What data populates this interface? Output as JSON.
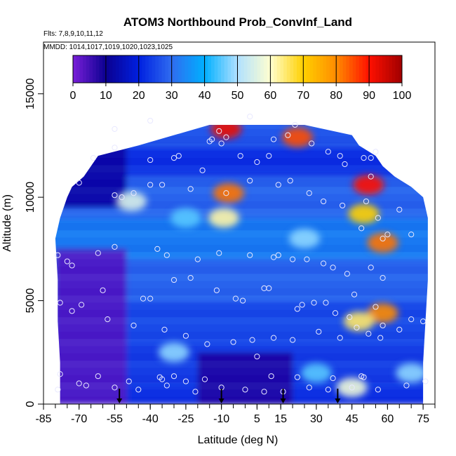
{
  "chart_data": {
    "type": "heatmap",
    "title": "ATOM3 Northbound Prob_ConvInf_Land",
    "annotations": [
      "Flts: 7,8,9,10,11,12",
      "MMDD: 1014,1017,1019,1020,1023,1025"
    ],
    "xlabel": "Latitude (deg N)",
    "ylabel": "Altitude (m)",
    "xlim": [
      -85,
      80
    ],
    "ylim": [
      0,
      17500
    ],
    "x_ticks": [
      -85,
      -70,
      -55,
      -40,
      -25,
      -10,
      5,
      15,
      30,
      45,
      60,
      75
    ],
    "y_ticks": [
      0,
      5000,
      10000,
      15000
    ],
    "colorbar": {
      "range": [
        0,
        100
      ],
      "ticks": [
        0,
        10,
        20,
        30,
        40,
        50,
        60,
        70,
        80,
        90,
        100
      ],
      "colors": [
        "#7a1fd9",
        "#0a0090",
        "#0020e0",
        "#2f6cf0",
        "#00b0ff",
        "#b0e0ff",
        "#ffffd0",
        "#ffd000",
        "#ff8c00",
        "#ff1000",
        "#a00000"
      ],
      "placement": "top inside plot"
    },
    "grid": false,
    "x_range_profile": [
      [
        0,
        -78,
        75
      ],
      [
        2000,
        -78,
        75
      ],
      [
        4000,
        -79,
        76
      ],
      [
        6000,
        -79,
        77
      ],
      [
        8000,
        -80,
        77
      ],
      [
        9000,
        -78,
        77
      ],
      [
        10000,
        -75,
        75
      ],
      [
        10500,
        -73,
        70
      ],
      [
        11000,
        -68,
        63
      ],
      [
        11500,
        -65,
        58
      ],
      [
        12000,
        -62,
        55
      ],
      [
        12500,
        -45,
        48
      ],
      [
        13000,
        -30,
        45
      ],
      [
        13500,
        -15,
        25
      ]
    ],
    "hotspots": [
      {
        "lat": -7,
        "alt": 10200,
        "value": 82
      },
      {
        "lat": -9,
        "alt": 9000,
        "value": 62
      },
      {
        "lat": -8,
        "alt": 13300,
        "value": 92
      },
      {
        "lat": 22,
        "alt": 12900,
        "value": 85
      },
      {
        "lat": 52,
        "alt": 10600,
        "value": 90
      },
      {
        "lat": 58,
        "alt": 7800,
        "value": 82
      },
      {
        "lat": 50,
        "alt": 9200,
        "value": 70
      },
      {
        "lat": 58,
        "alt": 4400,
        "value": 80
      },
      {
        "lat": 48,
        "alt": 4000,
        "value": 65
      },
      {
        "lat": 45,
        "alt": 800,
        "value": 58
      },
      {
        "lat": -48,
        "alt": 9800,
        "value": 55
      },
      {
        "lat": -25,
        "alt": 9000,
        "value": 45
      },
      {
        "lat": 25,
        "alt": 8000,
        "value": 48
      },
      {
        "lat": -30,
        "alt": 2500,
        "value": 48
      },
      {
        "lat": 30,
        "alt": 1500,
        "value": 45
      },
      {
        "lat": 70,
        "alt": 1500,
        "value": 48
      }
    ],
    "arrows_lat": [
      -53,
      -10,
      16,
      39
    ],
    "points": [
      [
        -78,
        1450
      ],
      [
        -70,
        1000
      ],
      [
        -62,
        1350
      ],
      [
        -49,
        1100
      ],
      [
        -36,
        1300
      ],
      [
        -35,
        1200
      ],
      [
        -30,
        1350
      ],
      [
        -25,
        1100
      ],
      [
        -17,
        1200
      ],
      [
        5,
        2300
      ],
      [
        11,
        1350
      ],
      [
        22,
        1300
      ],
      [
        37,
        1250
      ],
      [
        49,
        1350
      ],
      [
        50,
        1300
      ],
      [
        -78,
        4900
      ],
      [
        -60,
        5500
      ],
      [
        -43,
        5100
      ],
      [
        -40,
        5100
      ],
      [
        -30,
        6000
      ],
      [
        -23,
        6100
      ],
      [
        -12,
        5500
      ],
      [
        -4,
        5100
      ],
      [
        -1,
        5000
      ],
      [
        8,
        5600
      ],
      [
        10,
        5600
      ],
      [
        22,
        4600
      ],
      [
        24,
        4800
      ],
      [
        29,
        4900
      ],
      [
        34,
        4900
      ],
      [
        38,
        4400
      ],
      [
        44,
        4200
      ],
      [
        46,
        5300
      ],
      [
        52,
        3400
      ],
      [
        55,
        4700
      ],
      [
        58,
        3800
      ],
      [
        -79,
        7200
      ],
      [
        -75,
        6900
      ],
      [
        -73,
        6700
      ],
      [
        -62,
        7300
      ],
      [
        -55,
        7600
      ],
      [
        -37,
        7500
      ],
      [
        -33,
        7200
      ],
      [
        -20,
        7000
      ],
      [
        -11,
        7300
      ],
      [
        2,
        7200
      ],
      [
        12,
        7100
      ],
      [
        14,
        7200
      ],
      [
        20,
        7000
      ],
      [
        26,
        7000
      ],
      [
        33,
        6800
      ],
      [
        37,
        6600
      ],
      [
        43,
        6300
      ],
      [
        53,
        6600
      ],
      [
        58,
        6100
      ],
      [
        -70,
        10700
      ],
      [
        -55,
        10100
      ],
      [
        -52,
        10000
      ],
      [
        -47,
        10200
      ],
      [
        -40,
        10600
      ],
      [
        -35,
        10600
      ],
      [
        -23,
        10400
      ],
      [
        -18,
        11300
      ],
      [
        -8,
        10200
      ],
      [
        2,
        10800
      ],
      [
        14,
        10600
      ],
      [
        19,
        10800
      ],
      [
        27,
        10200
      ],
      [
        33,
        9800
      ],
      [
        41,
        9600
      ],
      [
        49,
        8500
      ],
      [
        51,
        9800
      ],
      [
        56,
        9000
      ],
      [
        58,
        8000
      ],
      [
        60,
        8200
      ],
      [
        65,
        9400
      ],
      [
        70,
        8200
      ],
      [
        -64,
        11900
      ],
      [
        -55,
        12400
      ],
      [
        -40,
        11800
      ],
      [
        -30,
        11900
      ],
      [
        -15,
        12700
      ],
      [
        -14,
        12800
      ],
      [
        -8,
        12900
      ],
      [
        -2,
        12000
      ],
      [
        10,
        12000
      ],
      [
        12,
        12800
      ],
      [
        28,
        12600
      ],
      [
        40,
        12000
      ],
      [
        50,
        11900
      ],
      [
        53,
        11000
      ],
      [
        53,
        11900
      ],
      [
        55,
        12200
      ],
      [
        -28,
        12000
      ],
      [
        -10,
        12600
      ],
      [
        5,
        11700
      ],
      [
        18,
        13000
      ],
      [
        35,
        12200
      ],
      [
        42,
        11600
      ],
      [
        -55,
        13300
      ],
      [
        -11,
        13200
      ],
      [
        21,
        13500
      ],
      [
        -40,
        13700
      ],
      [
        2,
        13900
      ],
      [
        -73,
        4500
      ],
      [
        -69,
        4800
      ],
      [
        -58,
        4100
      ],
      [
        -47,
        3800
      ],
      [
        -34,
        3600
      ],
      [
        -25,
        3300
      ],
      [
        -16,
        2900
      ],
      [
        -5,
        3000
      ],
      [
        3,
        3100
      ],
      [
        12,
        3200
      ],
      [
        20,
        3100
      ],
      [
        31,
        3500
      ],
      [
        40,
        3200
      ],
      [
        47,
        3700
      ],
      [
        57,
        3200
      ],
      [
        65,
        3600
      ],
      [
        70,
        4100
      ],
      [
        75,
        4000
      ],
      [
        -79,
        700
      ],
      [
        -67,
        900
      ],
      [
        -55,
        800
      ],
      [
        -45,
        700
      ],
      [
        -33,
        900
      ],
      [
        -21,
        600
      ],
      [
        -10,
        800
      ],
      [
        0,
        700
      ],
      [
        8,
        600
      ],
      [
        16,
        600
      ],
      [
        27,
        800
      ],
      [
        35,
        700
      ],
      [
        45,
        800
      ],
      [
        56,
        700
      ],
      [
        68,
        900
      ],
      [
        76,
        1100
      ]
    ]
  }
}
